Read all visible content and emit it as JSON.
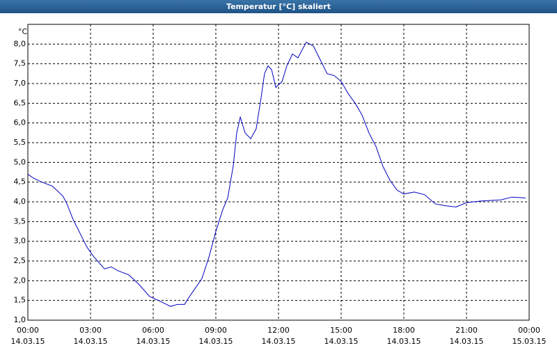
{
  "chart_data": {
    "type": "line",
    "title": "Temperatur [°C] skaliert",
    "y_label": "°C",
    "x": [
      0,
      0.27,
      0.67,
      1.17,
      1.67,
      1.83,
      2.17,
      2.5,
      2.83,
      3.17,
      3.67,
      4.0,
      4.33,
      4.83,
      5.33,
      5.83,
      6.33,
      6.83,
      7.17,
      7.5,
      7.83,
      8.33,
      8.67,
      9.0,
      9.33,
      9.57,
      9.83,
      10.0,
      10.17,
      10.4,
      10.67,
      10.93,
      11.17,
      11.33,
      11.5,
      11.67,
      11.87,
      12.17,
      12.4,
      12.67,
      12.93,
      13.33,
      13.67,
      14.0,
      14.33,
      14.67,
      15.0,
      15.33,
      15.67,
      16.0,
      16.33,
      16.67,
      17.0,
      17.33,
      17.67,
      18.0,
      18.5,
      19.0,
      19.5,
      20.0,
      20.5,
      21.0,
      21.67,
      22.67,
      23.17,
      23.83
    ],
    "series": [
      {
        "name": "Temperatur",
        "color": "#0000c0",
        "values": [
          4.7,
          4.6,
          4.5,
          4.4,
          4.15,
          4.0,
          3.55,
          3.2,
          2.85,
          2.6,
          2.3,
          2.35,
          2.25,
          2.15,
          1.9,
          1.6,
          1.48,
          1.35,
          1.4,
          1.4,
          1.67,
          2.05,
          2.6,
          3.25,
          3.8,
          4.1,
          4.9,
          5.75,
          6.15,
          5.75,
          5.6,
          5.85,
          6.65,
          7.25,
          7.45,
          7.35,
          6.9,
          7.05,
          7.45,
          7.75,
          7.65,
          8.05,
          7.95,
          7.6,
          7.25,
          7.2,
          7.05,
          6.75,
          6.5,
          6.2,
          5.75,
          5.4,
          4.9,
          4.55,
          4.3,
          4.2,
          4.25,
          4.18,
          3.95,
          3.9,
          3.87,
          3.98,
          4.02,
          4.05,
          4.12,
          4.1
        ]
      }
    ],
    "xlim": [
      0,
      24
    ],
    "xticks": [
      {
        "value": 0,
        "label": "00:00"
      },
      {
        "value": 3,
        "label": "03:00"
      },
      {
        "value": 6,
        "label": "06:00"
      },
      {
        "value": 9,
        "label": "09:00"
      },
      {
        "value": 12,
        "label": "12:00"
      },
      {
        "value": 15,
        "label": "15:00"
      },
      {
        "value": 18,
        "label": "18:00"
      },
      {
        "value": 21,
        "label": "21:00"
      },
      {
        "value": 24,
        "label": "00:00"
      }
    ],
    "xtick_dates": [
      "14.03.15",
      "14.03.15",
      "14.03.15",
      "14.03.15",
      "14.03.15",
      "14.03.15",
      "14.03.15",
      "14.03.15",
      "15.03.15"
    ],
    "ylim": [
      1,
      8.5
    ],
    "yticks": [
      {
        "value": 1,
        "label": "1,0"
      },
      {
        "value": 1.5,
        "label": "1,5"
      },
      {
        "value": 2,
        "label": "2,0"
      },
      {
        "value": 2.5,
        "label": "2,5"
      },
      {
        "value": 3,
        "label": "3,0"
      },
      {
        "value": 3.5,
        "label": "3,5"
      },
      {
        "value": 4,
        "label": "4,0"
      },
      {
        "value": 4.5,
        "label": "4,5"
      },
      {
        "value": 5,
        "label": "5,0"
      },
      {
        "value": 5.5,
        "label": "5,5"
      },
      {
        "value": 6,
        "label": "6,0"
      },
      {
        "value": 6.5,
        "label": "6,5"
      },
      {
        "value": 7,
        "label": "7,0"
      },
      {
        "value": 7.5,
        "label": "7,5"
      },
      {
        "value": 8,
        "label": "8,0"
      }
    ],
    "grid": true
  }
}
